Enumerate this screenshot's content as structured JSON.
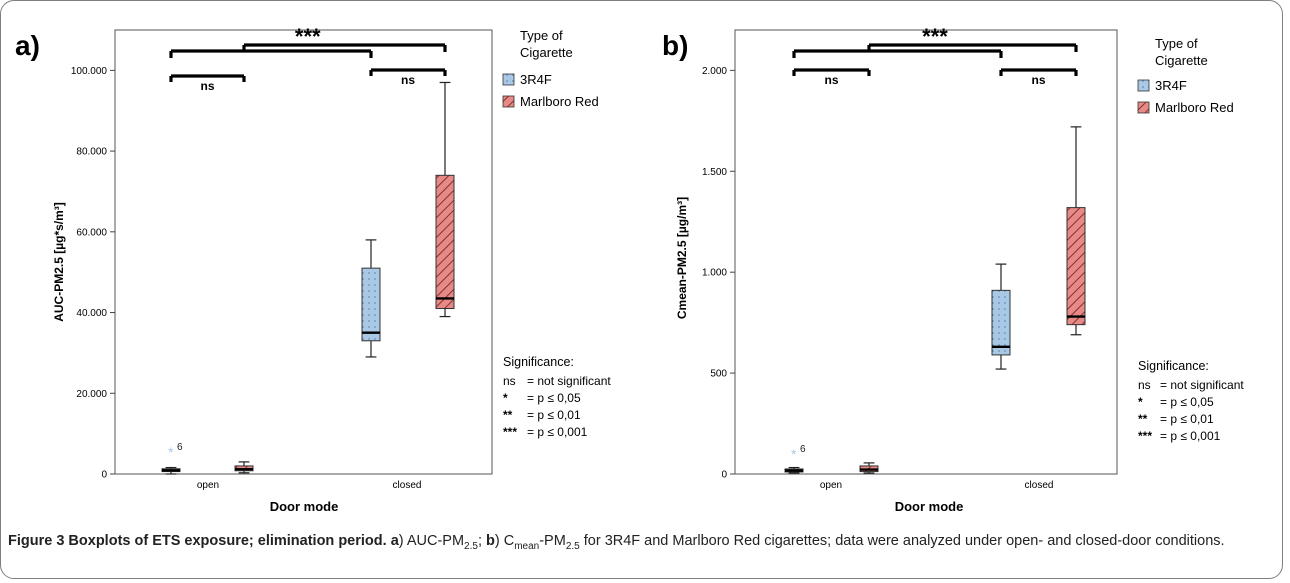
{
  "figure": {
    "caption_title": "Figure 3 Boxplots of ETS exposure; elimination period.",
    "caption_a": "a",
    "caption_a_text_1": ") AUC-PM",
    "caption_a_sub": "2.5",
    "caption_sep": "; ",
    "caption_b": "b",
    "caption_b_text_1": ") C",
    "caption_b_sub_1": "mean",
    "caption_b_text_2": "-PM",
    "caption_b_sub_2": "2.5",
    "caption_b_text_3": " for 3R4F and Marlboro Red cigarettes; data were analyzed under open- and closed-door conditions."
  },
  "legend": {
    "title_line1": "Type of",
    "title_line2": "Cigarette",
    "items": [
      "3R4F",
      "Marlboro Red"
    ]
  },
  "significance": {
    "title": "Significance:",
    "rows": [
      {
        "sym": "ns",
        "text": "= not significant"
      },
      {
        "sym": "*",
        "text": "= p ≤ 0,05"
      },
      {
        "sym": "**",
        "text": "= p ≤ 0,01"
      },
      {
        "sym": "***",
        "text": "= p ≤ 0,001"
      }
    ]
  },
  "colors": {
    "3R4F": "#a9c8e6",
    "Marlboro Red": "#e58a86",
    "outlier": "#a9c8e6"
  },
  "chart_data": [
    {
      "type": "box",
      "panel_label": "a)",
      "xlabel": "Door mode",
      "ylabel": "AUC-PM2.5 [µg*s/m³]",
      "categories": [
        "open",
        "closed"
      ],
      "ylim": [
        0,
        110000
      ],
      "yticks": [
        0,
        20000,
        40000,
        60000,
        80000,
        100000
      ],
      "ytick_labels": [
        "0",
        "20.000",
        "40.000",
        "60.000",
        "80.000",
        "100.000"
      ],
      "series": [
        {
          "name": "3R4F",
          "boxes": [
            {
              "min": 0,
              "q1": 600,
              "median": 900,
              "q3": 1300,
              "max": 1600,
              "outliers": [
                {
                  "value": 5500,
                  "label": "6"
                }
              ]
            },
            {
              "min": 29000,
              "q1": 33000,
              "median": 35000,
              "q3": 51000,
              "max": 58000
            }
          ]
        },
        {
          "name": "Marlboro Red",
          "boxes": [
            {
              "min": 300,
              "q1": 800,
              "median": 1200,
              "q3": 2000,
              "max": 3000
            },
            {
              "min": 39000,
              "q1": 41000,
              "median": 43500,
              "q3": 74000,
              "max": 97000
            }
          ]
        }
      ],
      "brackets": [
        {
          "scope": "open",
          "label": "ns"
        },
        {
          "scope": "closed",
          "label": "ns"
        },
        {
          "scope": "open vs closed",
          "label": "***"
        }
      ]
    },
    {
      "type": "box",
      "panel_label": "b)",
      "xlabel": "Door mode",
      "ylabel": "Cmean-PM2.5 [µg/m³]",
      "categories": [
        "open",
        "closed"
      ],
      "ylim": [
        0,
        2200
      ],
      "yticks": [
        0,
        500,
        1000,
        1500,
        2000
      ],
      "ytick_labels": [
        "0",
        "500",
        "1.000",
        "1.500",
        "2.000"
      ],
      "series": [
        {
          "name": "3R4F",
          "boxes": [
            {
              "min": 5,
              "q1": 10,
              "median": 17,
              "q3": 25,
              "max": 32,
              "outliers": [
                {
                  "value": 100,
                  "label": "6"
                }
              ]
            },
            {
              "min": 520,
              "q1": 590,
              "median": 630,
              "q3": 910,
              "max": 1040
            }
          ]
        },
        {
          "name": "Marlboro Red",
          "boxes": [
            {
              "min": 5,
              "q1": 12,
              "median": 22,
              "q3": 40,
              "max": 55
            },
            {
              "min": 690,
              "q1": 740,
              "median": 780,
              "q3": 1320,
              "max": 1720
            }
          ]
        }
      ],
      "brackets": [
        {
          "scope": "open",
          "label": "ns"
        },
        {
          "scope": "closed",
          "label": "ns"
        },
        {
          "scope": "open vs closed",
          "label": "***"
        }
      ]
    }
  ]
}
